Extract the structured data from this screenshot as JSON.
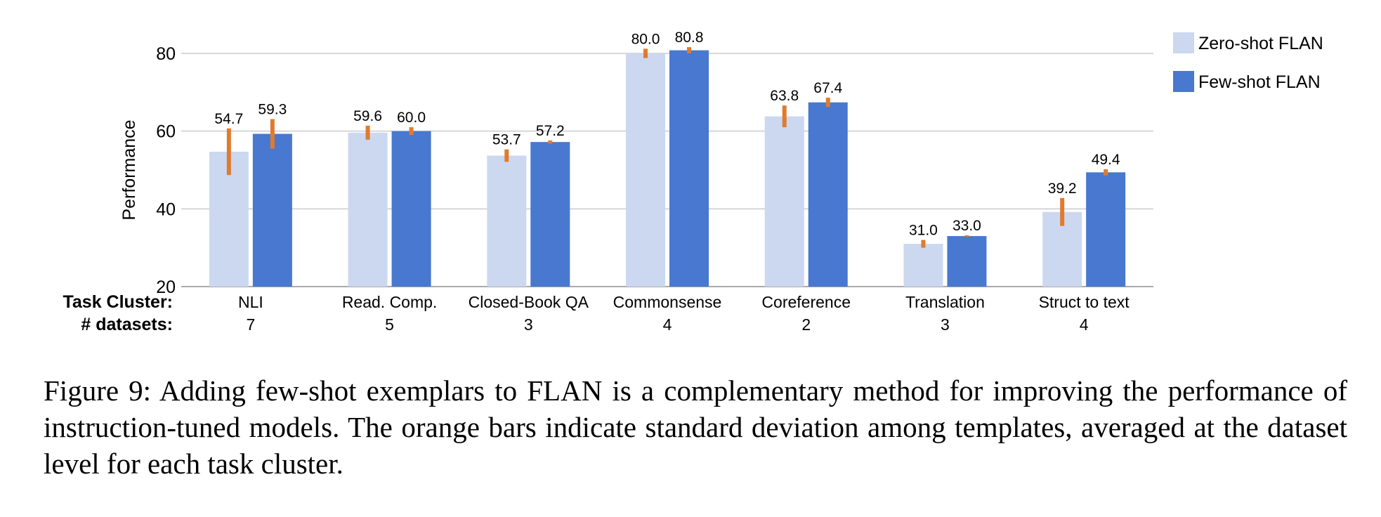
{
  "chart_data": {
    "type": "bar",
    "ylabel": "Performance",
    "ylim": [
      20,
      80
    ],
    "yticks": [
      20,
      40,
      60,
      80
    ],
    "grid": true,
    "legend_position": "top-right",
    "row_headers": {
      "cluster": "Task Cluster:",
      "datasets": "# datasets:"
    },
    "categories": [
      "NLI",
      "Read. Comp.",
      "Closed-Book QA",
      "Commonsense",
      "Coreference",
      "Translation",
      "Struct to text"
    ],
    "dataset_counts": [
      "7",
      "5",
      "3",
      "4",
      "2",
      "3",
      "4"
    ],
    "series": [
      {
        "name": "Zero-shot FLAN",
        "color": "#ccd8f0",
        "values": [
          54.7,
          59.6,
          53.7,
          80.0,
          63.8,
          31.0,
          39.2
        ],
        "labels": [
          "54.7",
          "59.6",
          "53.7",
          "80.0",
          "63.8",
          "31.0",
          "39.2"
        ],
        "std": [
          6.0,
          1.8,
          1.6,
          1.2,
          2.8,
          1.0,
          3.6
        ]
      },
      {
        "name": "Few-shot FLAN",
        "color": "#4878cf",
        "values": [
          59.3,
          60.0,
          57.2,
          80.8,
          67.4,
          33.0,
          49.4
        ],
        "labels": [
          "59.3",
          "60.0",
          "57.2",
          "80.8",
          "67.4",
          "33.0",
          "49.4"
        ],
        "std": [
          3.8,
          1.0,
          0.4,
          0.8,
          1.2,
          0.2,
          0.8
        ]
      }
    ],
    "error_bar_color": "#e07b2e"
  },
  "caption": "Figure 9:   Adding few-shot exemplars to FLAN is a complementary method for improving the performance of instruction-tuned models.  The orange bars indicate standard deviation among templates, averaged at the dataset level for each task cluster."
}
